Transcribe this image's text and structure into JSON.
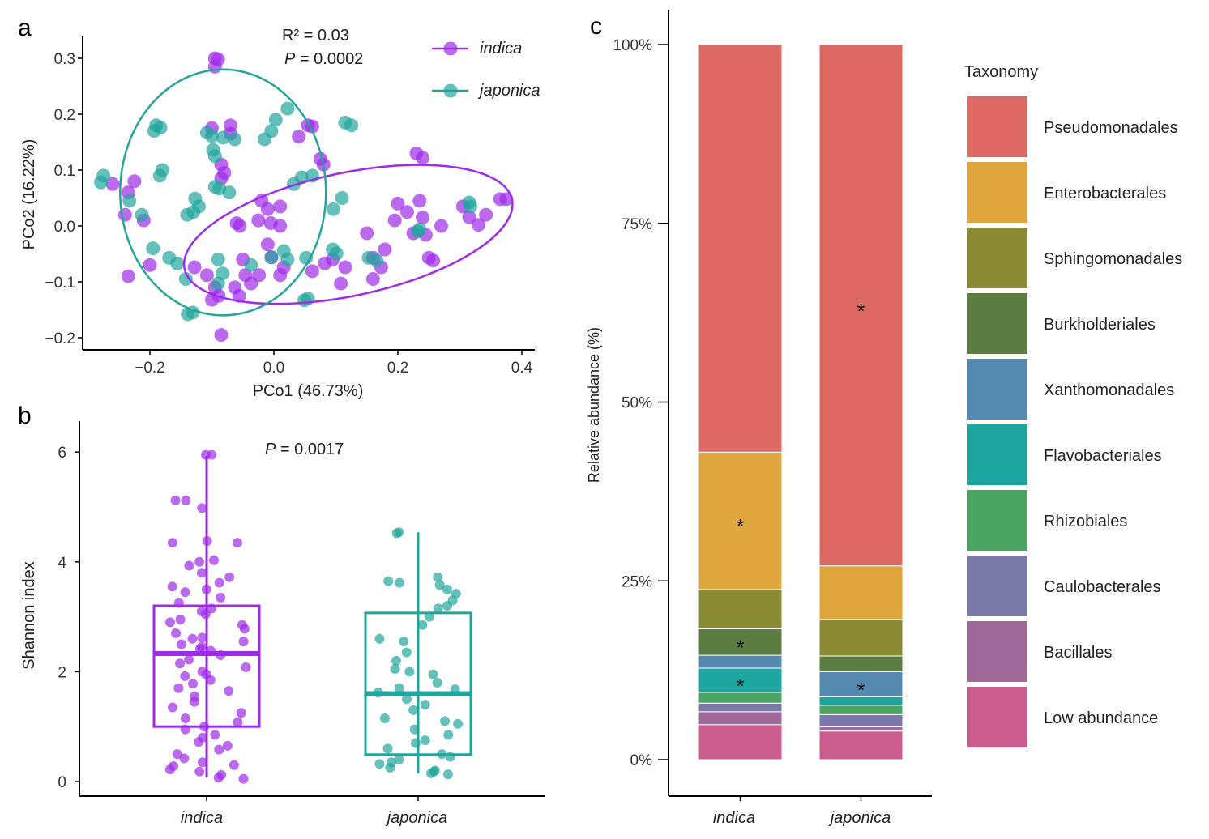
{
  "colors": {
    "indica": "#9E2BEA",
    "japonica": "#21A59C"
  },
  "chart_data": [
    {
      "panel": "a",
      "type": "scatter",
      "xlabel": "PCo1 (46.73%)",
      "ylabel": "PCo2 (16.22%)",
      "xlim": [
        -0.3,
        0.42
      ],
      "ylim": [
        -0.22,
        0.34
      ],
      "xticks": [
        -0.2,
        0.0,
        0.2,
        0.4
      ],
      "yticks": [
        -0.2,
        -0.1,
        0.0,
        0.1,
        0.2,
        0.3
      ],
      "xtick_labels": [
        "−0.2",
        "0.0",
        "0.2",
        "0.4"
      ],
      "ytick_labels": [
        "−0.2",
        "−0.1",
        "0.0",
        "0.1",
        "0.2",
        "0.3"
      ],
      "annotation_r2": "R² = 0.03",
      "annotation_p_label": "P",
      "annotation_p_value": " = 0.0002",
      "legend_position": "top-right",
      "series": [
        {
          "name": "indica",
          "ellipse": {
            "cx": 0.12,
            "cy": -0.015,
            "rx": 0.27,
            "ry": 0.11,
            "angle_deg": -12
          },
          "points": [
            [
              -0.095,
              0.3
            ],
            [
              -0.09,
              0.298
            ],
            [
              -0.095,
              0.285
            ],
            [
              -0.1,
              0.175
            ],
            [
              -0.07,
              0.18
            ],
            [
              -0.07,
              0.165
            ],
            [
              0.055,
              0.18
            ],
            [
              0.062,
              0.178
            ],
            [
              0.04,
              0.16
            ],
            [
              0.075,
              0.12
            ],
            [
              0.08,
              0.11
            ],
            [
              -0.085,
              0.11
            ],
            [
              -0.08,
              0.095
            ],
            [
              -0.085,
              0.085
            ],
            [
              0.23,
              0.13
            ],
            [
              0.24,
              0.122
            ],
            [
              -0.225,
              0.08
            ],
            [
              -0.235,
              0.06
            ],
            [
              -0.26,
              0.075
            ],
            [
              -0.24,
              0.02
            ],
            [
              -0.21,
              0.01
            ],
            [
              -0.02,
              0.045
            ],
            [
              -0.01,
              0.03
            ],
            [
              0.01,
              0.035
            ],
            [
              -0.06,
              0.005
            ],
            [
              -0.055,
              0.0
            ],
            [
              -0.025,
              0.01
            ],
            [
              -0.005,
              0.005
            ],
            [
              0.01,
              0.0
            ],
            [
              0.2,
              0.04
            ],
            [
              0.215,
              0.025
            ],
            [
              0.235,
              0.045
            ],
            [
              0.24,
              0.015
            ],
            [
              0.27,
              0.0
            ],
            [
              0.225,
              -0.013
            ],
            [
              0.245,
              -0.016
            ],
            [
              0.195,
              0.01
            ],
            [
              0.15,
              -0.013
            ],
            [
              0.305,
              0.035
            ],
            [
              0.315,
              0.016
            ],
            [
              0.33,
              0.002
            ],
            [
              0.342,
              0.02
            ],
            [
              0.365,
              0.048
            ],
            [
              0.375,
              0.048
            ],
            [
              -0.2,
              -0.07
            ],
            [
              -0.235,
              -0.09
            ],
            [
              -0.128,
              -0.074
            ],
            [
              -0.108,
              -0.088
            ],
            [
              -0.095,
              -0.11
            ],
            [
              -0.089,
              -0.125
            ],
            [
              -0.1,
              -0.132
            ],
            [
              -0.05,
              -0.06
            ],
            [
              -0.024,
              -0.088
            ],
            [
              -0.01,
              -0.033
            ],
            [
              -0.004,
              -0.056
            ],
            [
              0.01,
              -0.088
            ],
            [
              0.016,
              -0.074
            ],
            [
              0.062,
              -0.081
            ],
            [
              0.082,
              -0.067
            ],
            [
              0.095,
              -0.06
            ],
            [
              0.108,
              -0.103
            ],
            [
              0.115,
              -0.074
            ],
            [
              0.16,
              -0.057
            ],
            [
              0.173,
              -0.074
            ],
            [
              0.16,
              -0.095
            ],
            [
              0.179,
              -0.042
            ],
            [
              0.25,
              -0.057
            ],
            [
              0.257,
              -0.062
            ],
            [
              -0.046,
              -0.088
            ],
            [
              -0.063,
              -0.11
            ],
            [
              -0.056,
              -0.125
            ],
            [
              -0.037,
              -0.103
            ],
            [
              -0.085,
              -0.195
            ]
          ]
        },
        {
          "name": "japonica",
          "ellipse": {
            "cx": -0.082,
            "cy": 0.06,
            "rx": 0.166,
            "ry": 0.22,
            "angle_deg": 0
          },
          "points": [
            [
              -0.275,
              0.09
            ],
            [
              -0.279,
              0.078
            ],
            [
              -0.19,
              0.18
            ],
            [
              -0.183,
              0.176
            ],
            [
              -0.193,
              0.17
            ],
            [
              -0.18,
              0.1
            ],
            [
              -0.184,
              0.09
            ],
            [
              -0.233,
              0.045
            ],
            [
              -0.213,
              0.02
            ],
            [
              -0.108,
              0.167
            ],
            [
              -0.1,
              0.161
            ],
            [
              -0.082,
              0.158
            ],
            [
              -0.063,
              0.155
            ],
            [
              -0.098,
              0.136
            ],
            [
              -0.095,
              0.125
            ],
            [
              -0.095,
              0.07
            ],
            [
              -0.088,
              0.067
            ],
            [
              -0.072,
              0.06
            ],
            [
              -0.127,
              0.049
            ],
            [
              -0.121,
              0.035
            ],
            [
              -0.13,
              0.025
            ],
            [
              -0.14,
              0.02
            ],
            [
              -0.015,
              0.155
            ],
            [
              0.003,
              0.19
            ],
            [
              0.022,
              0.21
            ],
            [
              -0.004,
              0.17
            ],
            [
              0.032,
              0.075
            ],
            [
              0.045,
              0.087
            ],
            [
              0.062,
              0.09
            ],
            [
              0.11,
              0.05
            ],
            [
              0.096,
              0.03
            ],
            [
              0.115,
              0.185
            ],
            [
              0.125,
              0.18
            ],
            [
              -0.195,
              -0.04
            ],
            [
              -0.169,
              -0.057
            ],
            [
              -0.156,
              -0.067
            ],
            [
              -0.142,
              -0.095
            ],
            [
              -0.139,
              -0.158
            ],
            [
              -0.131,
              -0.155
            ],
            [
              -0.09,
              -0.06
            ],
            [
              -0.083,
              -0.085
            ],
            [
              -0.09,
              -0.103
            ],
            [
              -0.037,
              -0.07
            ],
            [
              -0.004,
              -0.056
            ],
            [
              0.016,
              -0.045
            ],
            [
              0.022,
              -0.06
            ],
            [
              0.052,
              -0.057
            ],
            [
              0.095,
              -0.042
            ],
            [
              0.101,
              -0.049
            ],
            [
              0.153,
              -0.057
            ],
            [
              0.166,
              -0.062
            ],
            [
              0.232,
              -0.01
            ],
            [
              0.235,
              -0.006
            ],
            [
              0.315,
              0.042
            ],
            [
              0.317,
              0.035
            ],
            [
              0.055,
              -0.13
            ],
            [
              0.049,
              -0.133
            ]
          ]
        }
      ]
    },
    {
      "panel": "b",
      "type": "box",
      "ylabel": "Shannon index",
      "categories": [
        "indica",
        "japonica"
      ],
      "ylim": [
        0,
        6.4
      ],
      "yticks": [
        0,
        2,
        4,
        6
      ],
      "annotation_p_label": "P",
      "annotation_p_value": " = 0.0017",
      "boxes": [
        {
          "name": "indica",
          "whisker_low": 0.07,
          "q1": 1.0,
          "median": 2.33,
          "q3": 3.2,
          "whisker_high": 5.93,
          "points": [
            5.95,
            5.95,
            5.12,
            5.12,
            4.98,
            4.38,
            4.35,
            4.35,
            4.03,
            4.0,
            3.93,
            3.72,
            3.62,
            3.55,
            3.5,
            3.45,
            3.35,
            3.25,
            3.15,
            3.05,
            2.95,
            2.9,
            2.85,
            2.78,
            2.7,
            2.62,
            2.55,
            2.5,
            2.42,
            2.38,
            2.3,
            2.22,
            2.15,
            2.08,
            2.0,
            1.92,
            1.85,
            1.78,
            1.7,
            1.65,
            1.55,
            1.45,
            1.35,
            1.25,
            1.15,
            1.08,
            1.0,
            0.95,
            0.85,
            0.72,
            0.65,
            0.58,
            0.5,
            0.42,
            0.35,
            0.28,
            0.22,
            0.18,
            0.12,
            0.07,
            0.05,
            2.6,
            3.1,
            1.95,
            2.45,
            0.3,
            0.8,
            3.8
          ]
        },
        {
          "name": "japonica",
          "whisker_low": 0.15,
          "q1": 0.49,
          "median": 1.6,
          "q3": 3.07,
          "whisker_high": 4.54,
          "points": [
            4.54,
            4.52,
            3.72,
            3.65,
            3.62,
            3.58,
            3.5,
            3.42,
            3.3,
            3.2,
            3.15,
            3.0,
            2.85,
            2.6,
            2.55,
            2.35,
            2.05,
            2.0,
            1.95,
            1.8,
            1.7,
            1.68,
            1.62,
            1.5,
            1.4,
            1.3,
            1.15,
            1.05,
            0.95,
            0.85,
            0.75,
            0.7,
            0.6,
            0.5,
            0.45,
            0.4,
            0.32,
            0.25,
            0.2,
            0.18,
            0.15,
            0.13,
            2.2,
            1.1,
            0.35
          ]
        }
      ]
    },
    {
      "panel": "c",
      "type": "stacked_bar",
      "ylabel": "Relative abundance (%)",
      "categories": [
        "indica",
        "japonica"
      ],
      "ylim": [
        0,
        100
      ],
      "yticks": [
        0,
        25,
        50,
        75,
        100
      ],
      "ytick_labels": [
        "0%",
        "25%",
        "50%",
        "75%",
        "100%"
      ],
      "legend_title": "Taxonomy",
      "legend_position": "right",
      "series": [
        {
          "name": "Pseudomonadales",
          "color": "#DC6962",
          "values": [
            57.0,
            72.9
          ],
          "significant": [
            false,
            true
          ]
        },
        {
          "name": "Enterobacterales",
          "color": "#E0A63E",
          "values": [
            19.2,
            7.5
          ],
          "significant": [
            true,
            false
          ]
        },
        {
          "name": "Sphingomonadales",
          "color": "#8A8A32",
          "values": [
            5.5,
            5.1
          ],
          "significant": [
            false,
            false
          ]
        },
        {
          "name": "Burkholderiales",
          "color": "#5C7D41",
          "values": [
            3.7,
            2.2
          ],
          "significant": [
            true,
            false
          ]
        },
        {
          "name": "Xanthomonadales",
          "color": "#5589B0",
          "values": [
            1.8,
            3.5
          ],
          "significant": [
            false,
            true
          ]
        },
        {
          "name": "Flavobacteriales",
          "color": "#1DA5A0",
          "values": [
            3.4,
            1.2
          ],
          "significant": [
            true,
            false
          ]
        },
        {
          "name": "Rhizobiales",
          "color": "#4AA562",
          "values": [
            1.5,
            1.3
          ],
          "significant": [
            false,
            false
          ]
        },
        {
          "name": "Caulobacterales",
          "color": "#7B78AA",
          "values": [
            1.2,
            1.7
          ],
          "significant": [
            false,
            false
          ]
        },
        {
          "name": "Bacillales",
          "color": "#9F6898",
          "values": [
            1.8,
            0.6
          ],
          "significant": [
            false,
            false
          ]
        },
        {
          "name": "Low abundance",
          "color": "#CB5D8E",
          "values": [
            4.9,
            4.0
          ],
          "significant": [
            false,
            false
          ]
        }
      ],
      "significance_mark": "*"
    }
  ],
  "panel_labels": [
    "a",
    "b",
    "c"
  ]
}
